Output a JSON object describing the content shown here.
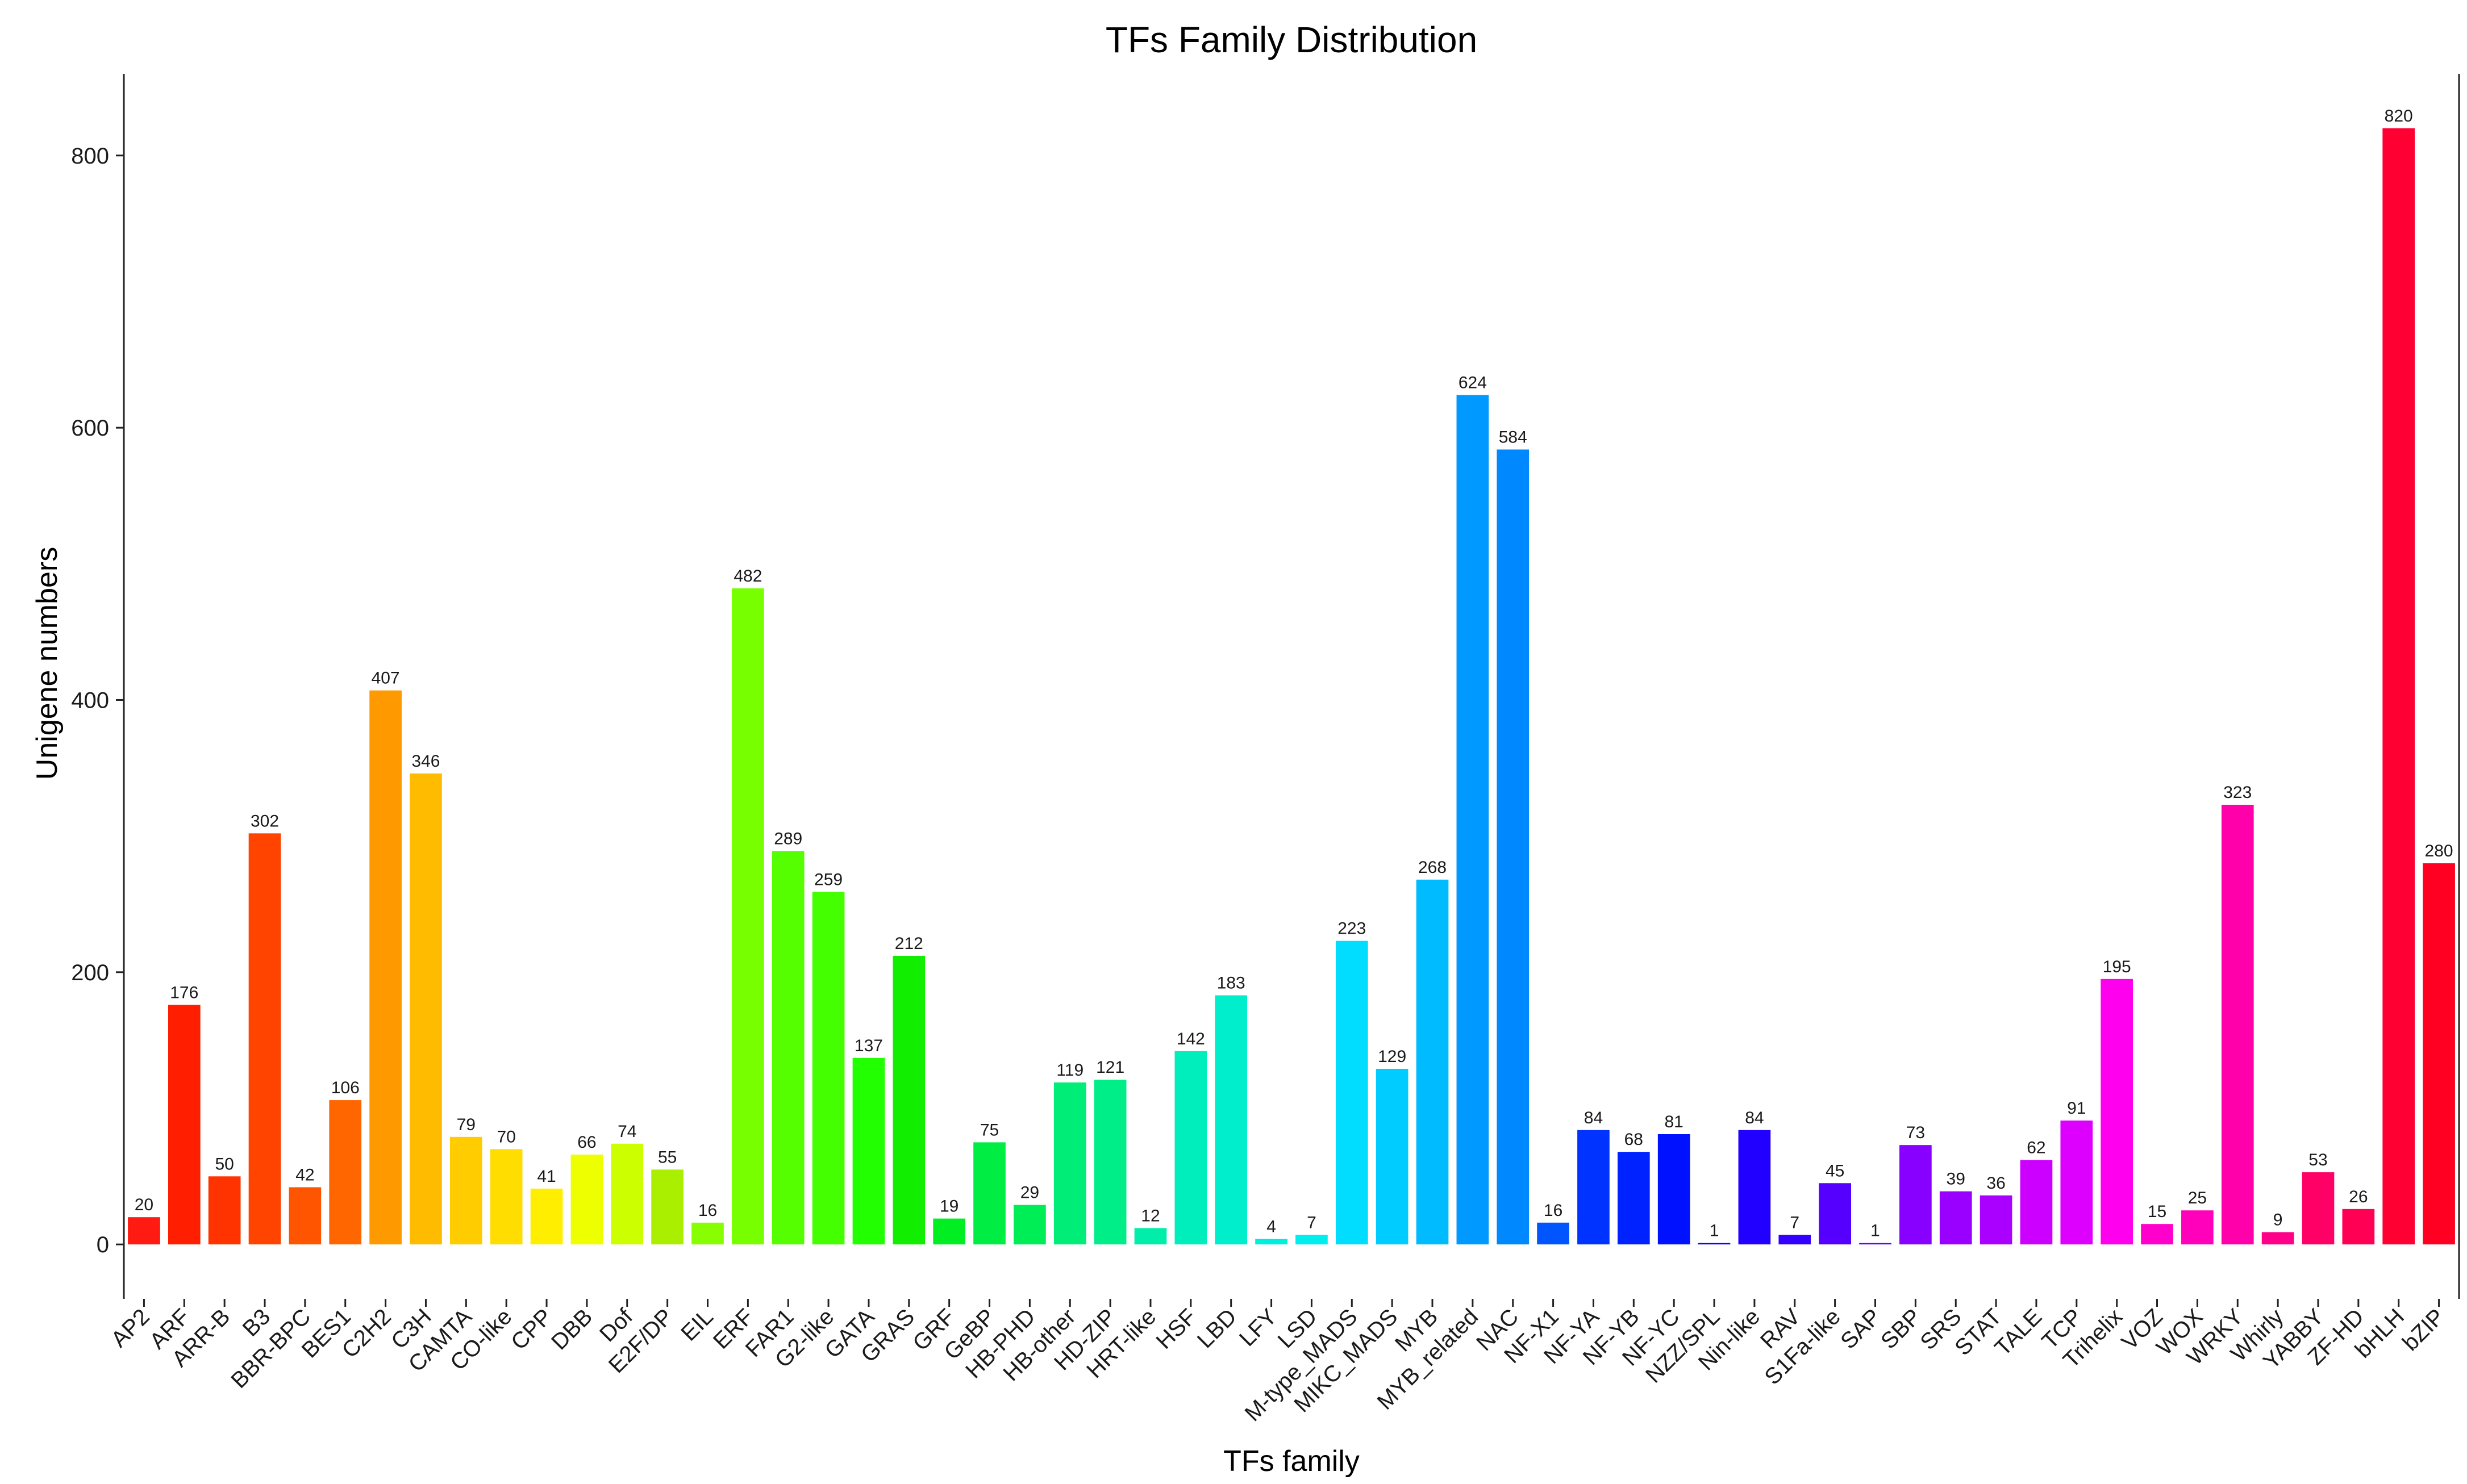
{
  "chart_data": {
    "type": "bar",
    "title": "TFs Family Distribution",
    "xlabel": "TFs family",
    "ylabel": "Unigene numbers",
    "ylim": [
      -40,
      860
    ],
    "yticks": [
      0,
      200,
      400,
      600,
      800
    ],
    "grid": false,
    "legend": "none",
    "categories": [
      "AP2",
      "ARF",
      "ARR-B",
      "B3",
      "BBR-BPC",
      "BES1",
      "C2H2",
      "C3H",
      "CAMTA",
      "CO-like",
      "CPP",
      "DBB",
      "Dof",
      "E2F/DP",
      "EIL",
      "ERF",
      "FAR1",
      "G2-like",
      "GATA",
      "GRAS",
      "GRF",
      "GeBP",
      "HB-PHD",
      "HB-other",
      "HD-ZIP",
      "HRT-like",
      "HSF",
      "LBD",
      "LFY",
      "LSD",
      "M-type_MADS",
      "MIKC_MADS",
      "MYB",
      "MYB_related",
      "NAC",
      "NF-X1",
      "NF-YA",
      "NF-YB",
      "NF-YC",
      "NZZ/SPL",
      "Nin-like",
      "RAV",
      "S1Fa-like",
      "SAP",
      "SBP",
      "SRS",
      "STAT",
      "TALE",
      "TCP",
      "Trihelix",
      "VOZ",
      "WOX",
      "WRKY",
      "Whirly",
      "YABBY",
      "ZF-HD",
      "bHLH",
      "bZIP"
    ],
    "values": [
      20,
      176,
      50,
      302,
      42,
      106,
      407,
      346,
      79,
      70,
      41,
      66,
      74,
      55,
      16,
      482,
      289,
      259,
      137,
      212,
      19,
      75,
      29,
      119,
      121,
      12,
      142,
      183,
      4,
      7,
      223,
      129,
      268,
      624,
      584,
      16,
      84,
      68,
      81,
      1,
      84,
      7,
      45,
      1,
      73,
      39,
      36,
      62,
      91,
      195,
      15,
      25,
      323,
      9,
      53,
      26,
      820,
      280
    ],
    "colors": [
      "#ff1a12",
      "#ff1f00",
      "#ff3300",
      "#ff4400",
      "#ff5500",
      "#ff6600",
      "#ff9900",
      "#ffbb00",
      "#ffcc00",
      "#ffdd00",
      "#ffee00",
      "#eeff00",
      "#ccff00",
      "#aaee00",
      "#88ff00",
      "#77ff00",
      "#55ff00",
      "#44ff00",
      "#22ff00",
      "#11ee00",
      "#00ee22",
      "#00ee44",
      "#00ee55",
      "#00ee77",
      "#00ee88",
      "#00eeaa",
      "#00eebb",
      "#00eecc",
      "#00eedd",
      "#00eeee",
      "#00ddff",
      "#00ccff",
      "#00bbff",
      "#0099ff",
      "#0088ff",
      "#0055ff",
      "#0033ff",
      "#0022ff",
      "#0011ff",
      "#1100ff",
      "#2200ff",
      "#3300ff",
      "#5500ff",
      "#6600ff",
      "#8800ff",
      "#9900ff",
      "#aa00ff",
      "#cc00ff",
      "#dd00ff",
      "#ff00ee",
      "#ff00cc",
      "#ff00bb",
      "#ff00aa",
      "#ff0088",
      "#ff0066",
      "#ff0055",
      "#ff0033",
      "#ff0022"
    ]
  }
}
